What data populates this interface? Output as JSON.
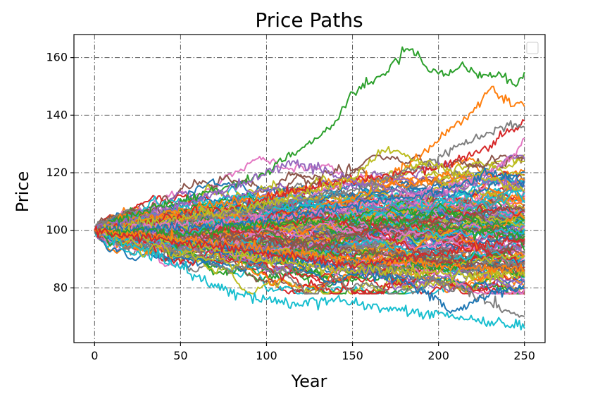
{
  "chart_data": {
    "type": "line",
    "title": "Price Paths",
    "xlabel": "Year",
    "ylabel": "Price",
    "xlim": [
      -12,
      262
    ],
    "ylim": [
      61,
      168
    ],
    "xticks": [
      0,
      50,
      100,
      150,
      200,
      250
    ],
    "yticks": [
      80,
      100,
      120,
      140,
      160
    ],
    "grid": true,
    "legend": "top-right (empty)",
    "colors": [
      "#1f77b4",
      "#ff7f0e",
      "#2ca02c",
      "#d62728",
      "#9467bd",
      "#8c564b",
      "#e377c2",
      "#7f7f7f",
      "#bcbd22",
      "#17becf"
    ],
    "n_steps": 251,
    "start_value": 100,
    "series": [
      {
        "color": "#2ca02c",
        "x": [
          0,
          30,
          60,
          80,
          100,
          115,
          130,
          140,
          150,
          160,
          170,
          180,
          185,
          195,
          205,
          215,
          225,
          235,
          245,
          250
        ],
        "values": [
          100,
          107,
          112,
          116,
          120,
          127,
          132,
          138,
          148,
          151,
          155,
          162,
          163,
          155,
          154,
          157,
          153,
          155,
          150,
          155
        ]
      },
      {
        "color": "#ff7f0e",
        "x": [
          0,
          30,
          60,
          100,
          140,
          170,
          190,
          200,
          210,
          220,
          230,
          240,
          250
        ],
        "values": [
          100,
          104,
          108,
          112,
          116,
          118,
          126,
          131,
          137,
          141,
          149,
          145,
          143
        ]
      },
      {
        "color": "#17becf",
        "x": [
          0,
          20,
          40,
          60,
          80,
          100,
          120,
          140,
          160,
          180,
          200,
          220,
          240,
          250
        ],
        "values": [
          100,
          95,
          90,
          84,
          78,
          76,
          74,
          76,
          74,
          72,
          71,
          69,
          67,
          66
        ]
      },
      {
        "color": "#7f7f7f",
        "x": [
          0,
          40,
          80,
          120,
          160,
          200,
          220,
          230,
          240,
          250
        ],
        "values": [
          100,
          98,
          95,
          92,
          88,
          82,
          78,
          75,
          72,
          70
        ]
      },
      {
        "color": "#1f77b4",
        "x": [
          0,
          40,
          80,
          120,
          150,
          180,
          200,
          210,
          230,
          250
        ],
        "values": [
          100,
          97,
          94,
          90,
          86,
          82,
          76,
          72,
          78,
          80
        ]
      },
      {
        "color": "#d62728",
        "x": [
          0,
          40,
          80,
          120,
          160,
          200,
          220,
          235,
          250
        ],
        "values": [
          100,
          104,
          108,
          114,
          118,
          122,
          126,
          132,
          138
        ]
      },
      {
        "color": "#9467bd",
        "x": [
          0,
          30,
          60,
          90,
          115,
          140,
          170,
          200,
          225,
          250
        ],
        "values": [
          100,
          105,
          110,
          117,
          124,
          119,
          114,
          112,
          118,
          115
        ]
      },
      {
        "color": "#7f7f7f",
        "x": [
          0,
          50,
          100,
          150,
          190,
          210,
          230,
          245,
          250
        ],
        "values": [
          100,
          103,
          108,
          114,
          122,
          129,
          134,
          137,
          136
        ]
      },
      {
        "color": "#bcbd22",
        "x": [
          0,
          50,
          100,
          150,
          170,
          190,
          210,
          230,
          250
        ],
        "values": [
          100,
          104,
          109,
          118,
          128,
          124,
          120,
          118,
          114
        ]
      },
      {
        "color": "#e377c2",
        "x": [
          0,
          50,
          100,
          150,
          200,
          230,
          245,
          250
        ],
        "values": [
          100,
          102,
          104,
          108,
          114,
          120,
          126,
          132
        ]
      },
      {
        "color": "#1f77b4",
        "x": [
          0,
          50,
          100,
          150,
          200,
          230,
          250
        ],
        "values": [
          100,
          101,
          103,
          109,
          113,
          120,
          117
        ]
      },
      {
        "color": "#8c564b",
        "x": [
          0,
          50,
          100,
          150,
          200,
          250
        ],
        "values": [
          100,
          98,
          96,
          93,
          90,
          86
        ]
      },
      {
        "color": "#bcbd22",
        "x": [
          0,
          50,
          100,
          150,
          200,
          250
        ],
        "values": [
          100,
          96,
          90,
          86,
          85,
          84
        ]
      },
      {
        "color": "#2ca02c",
        "x": [
          0,
          50,
          100,
          150,
          200,
          250
        ],
        "values": [
          100,
          99,
          102,
          104,
          101,
          98
        ]
      },
      {
        "color": "#ff7f0e",
        "x": [
          0,
          50,
          100,
          150,
          200,
          250
        ],
        "values": [
          100,
          97,
          93,
          90,
          88,
          86
        ]
      },
      {
        "color": "#d62728",
        "x": [
          0,
          50,
          100,
          150,
          200,
          250
        ],
        "values": [
          100,
          96,
          92,
          88,
          92,
          97
        ]
      }
    ]
  }
}
